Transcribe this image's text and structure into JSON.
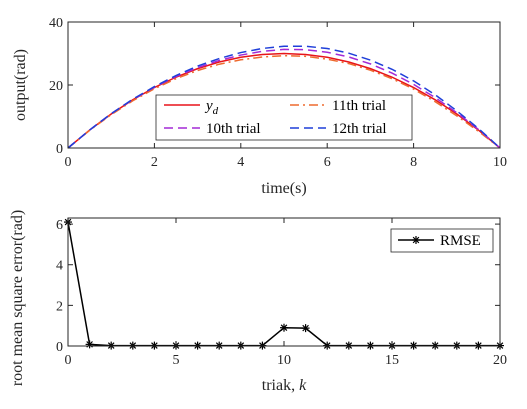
{
  "chart_data": [
    {
      "type": "line",
      "title": "",
      "xlabel": "time(s)",
      "ylabel": "output(rad)",
      "xlim": [
        0,
        10
      ],
      "ylim": [
        0,
        40
      ],
      "xticks": [
        0,
        2,
        4,
        6,
        8,
        10
      ],
      "yticks": [
        0,
        20,
        40
      ],
      "grid": false,
      "legend": {
        "placement": "bottom-center",
        "columns": 2
      },
      "x": [
        0,
        0.5,
        1,
        1.5,
        2,
        2.5,
        3,
        3.5,
        4,
        4.5,
        5,
        5.5,
        6,
        6.5,
        7,
        7.5,
        8,
        8.5,
        9,
        9.5,
        10
      ],
      "series": [
        {
          "name": "y_d",
          "name_base": "y",
          "name_sub": "d",
          "color": "#e8141a",
          "style": "solid",
          "values": [
            0,
            5.7,
            10.8,
            15.3,
            19.2,
            22.5,
            25.2,
            27.3,
            28.8,
            29.7,
            30.0,
            29.7,
            28.8,
            27.3,
            25.2,
            22.5,
            19.2,
            15.3,
            10.8,
            5.7,
            0
          ]
        },
        {
          "name": "11th trial",
          "color": "#ee6a2e",
          "style": "dashdot",
          "values": [
            0,
            5.6,
            10.6,
            15.0,
            18.8,
            22.0,
            24.6,
            26.6,
            28.0,
            28.9,
            29.3,
            29.1,
            28.2,
            26.8,
            24.7,
            22.0,
            18.7,
            14.7,
            10.2,
            5.3,
            0
          ]
        },
        {
          "name": "10th trial",
          "color": "#a32ad6",
          "style": "dashed",
          "values": [
            0,
            5.7,
            10.9,
            15.4,
            19.3,
            22.7,
            25.5,
            27.8,
            29.5,
            30.7,
            31.3,
            31.2,
            30.4,
            28.9,
            26.7,
            23.8,
            20.2,
            16.0,
            11.2,
            5.9,
            0
          ]
        },
        {
          "name": "12th trial",
          "color": "#1f3fd9",
          "style": "dashed",
          "values": [
            0,
            5.7,
            10.9,
            15.5,
            19.5,
            23.0,
            26.0,
            28.4,
            30.3,
            31.6,
            32.3,
            32.3,
            31.6,
            30.1,
            27.9,
            25.0,
            21.3,
            16.9,
            11.8,
            6.2,
            0
          ]
        }
      ]
    },
    {
      "type": "line",
      "title": "",
      "xlabel": "triak, k",
      "xlabel_text": "triak, ",
      "xlabel_var": "k",
      "ylabel": "root mean square error(rad)",
      "xlim": [
        0,
        20
      ],
      "ylim": [
        0,
        6.3
      ],
      "xticks": [
        0,
        5,
        10,
        15,
        20
      ],
      "yticks": [
        0,
        2,
        4,
        6
      ],
      "grid": false,
      "legend": {
        "placement": "top-right"
      },
      "x": [
        0,
        1,
        2,
        3,
        4,
        5,
        6,
        7,
        8,
        9,
        10,
        11,
        12,
        13,
        14,
        15,
        16,
        17,
        18,
        19,
        20
      ],
      "series": [
        {
          "name": "RMSE",
          "color": "#000000",
          "style": "solid",
          "marker": "asterisk",
          "values": [
            6.1,
            0.08,
            0.02,
            0.02,
            0.02,
            0.02,
            0.02,
            0.02,
            0.02,
            0.02,
            0.9,
            0.88,
            0.02,
            0.02,
            0.02,
            0.02,
            0.02,
            0.02,
            0.02,
            0.02,
            0.02
          ]
        }
      ]
    }
  ]
}
